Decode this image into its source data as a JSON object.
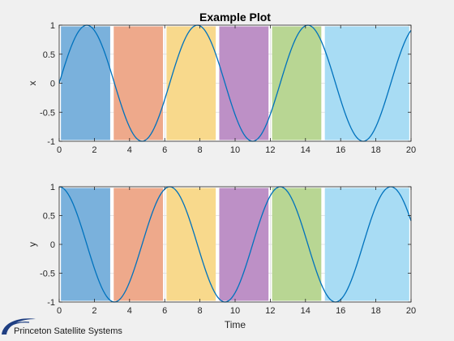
{
  "chart_data": [
    {
      "type": "line",
      "title": "Example Plot",
      "xlabel": "",
      "ylabel": "x",
      "xlim": [
        0,
        20
      ],
      "ylim": [
        -1,
        1
      ],
      "xticks": [
        0,
        2,
        4,
        6,
        8,
        10,
        12,
        14,
        16,
        18,
        20
      ],
      "yticks": [
        -1,
        -0.5,
        0,
        0.5,
        1
      ],
      "grid": true,
      "curve": {
        "function": "sin",
        "x_start": 0,
        "x_end": 20,
        "x_step": 0.1
      },
      "bands": [
        {
          "start": 0.1,
          "end": 2.9,
          "color": "#7ab1dc"
        },
        {
          "start": 3.1,
          "end": 5.9,
          "color": "#eea98b"
        },
        {
          "start": 6.1,
          "end": 8.9,
          "color": "#f8d98c"
        },
        {
          "start": 9.1,
          "end": 11.9,
          "color": "#bd90c6"
        },
        {
          "start": 12.1,
          "end": 14.9,
          "color": "#b8d693"
        },
        {
          "start": 15.1,
          "end": 19.9,
          "color": "#a8dcf4"
        }
      ],
      "line_color": "#0072bd"
    },
    {
      "type": "line",
      "title": "",
      "xlabel": "Time",
      "ylabel": "y",
      "xlim": [
        0,
        20
      ],
      "ylim": [
        -1,
        1
      ],
      "xticks": [
        0,
        2,
        4,
        6,
        8,
        10,
        12,
        14,
        16,
        18,
        20
      ],
      "yticks": [
        -1,
        -0.5,
        0,
        0.5,
        1
      ],
      "grid": true,
      "curve": {
        "function": "cos",
        "x_start": 0,
        "x_end": 20,
        "x_step": 0.1
      },
      "bands": [
        {
          "start": 0.1,
          "end": 2.9,
          "color": "#7ab1dc"
        },
        {
          "start": 3.1,
          "end": 5.9,
          "color": "#eea98b"
        },
        {
          "start": 6.1,
          "end": 8.9,
          "color": "#f8d98c"
        },
        {
          "start": 9.1,
          "end": 11.9,
          "color": "#bd90c6"
        },
        {
          "start": 12.1,
          "end": 14.9,
          "color": "#b8d693"
        },
        {
          "start": 15.1,
          "end": 19.9,
          "color": "#a8dcf4"
        }
      ],
      "line_color": "#0072bd"
    }
  ],
  "logo": {
    "text": "Princeton Satellite Systems",
    "icon": "orbit-swoosh-icon"
  }
}
